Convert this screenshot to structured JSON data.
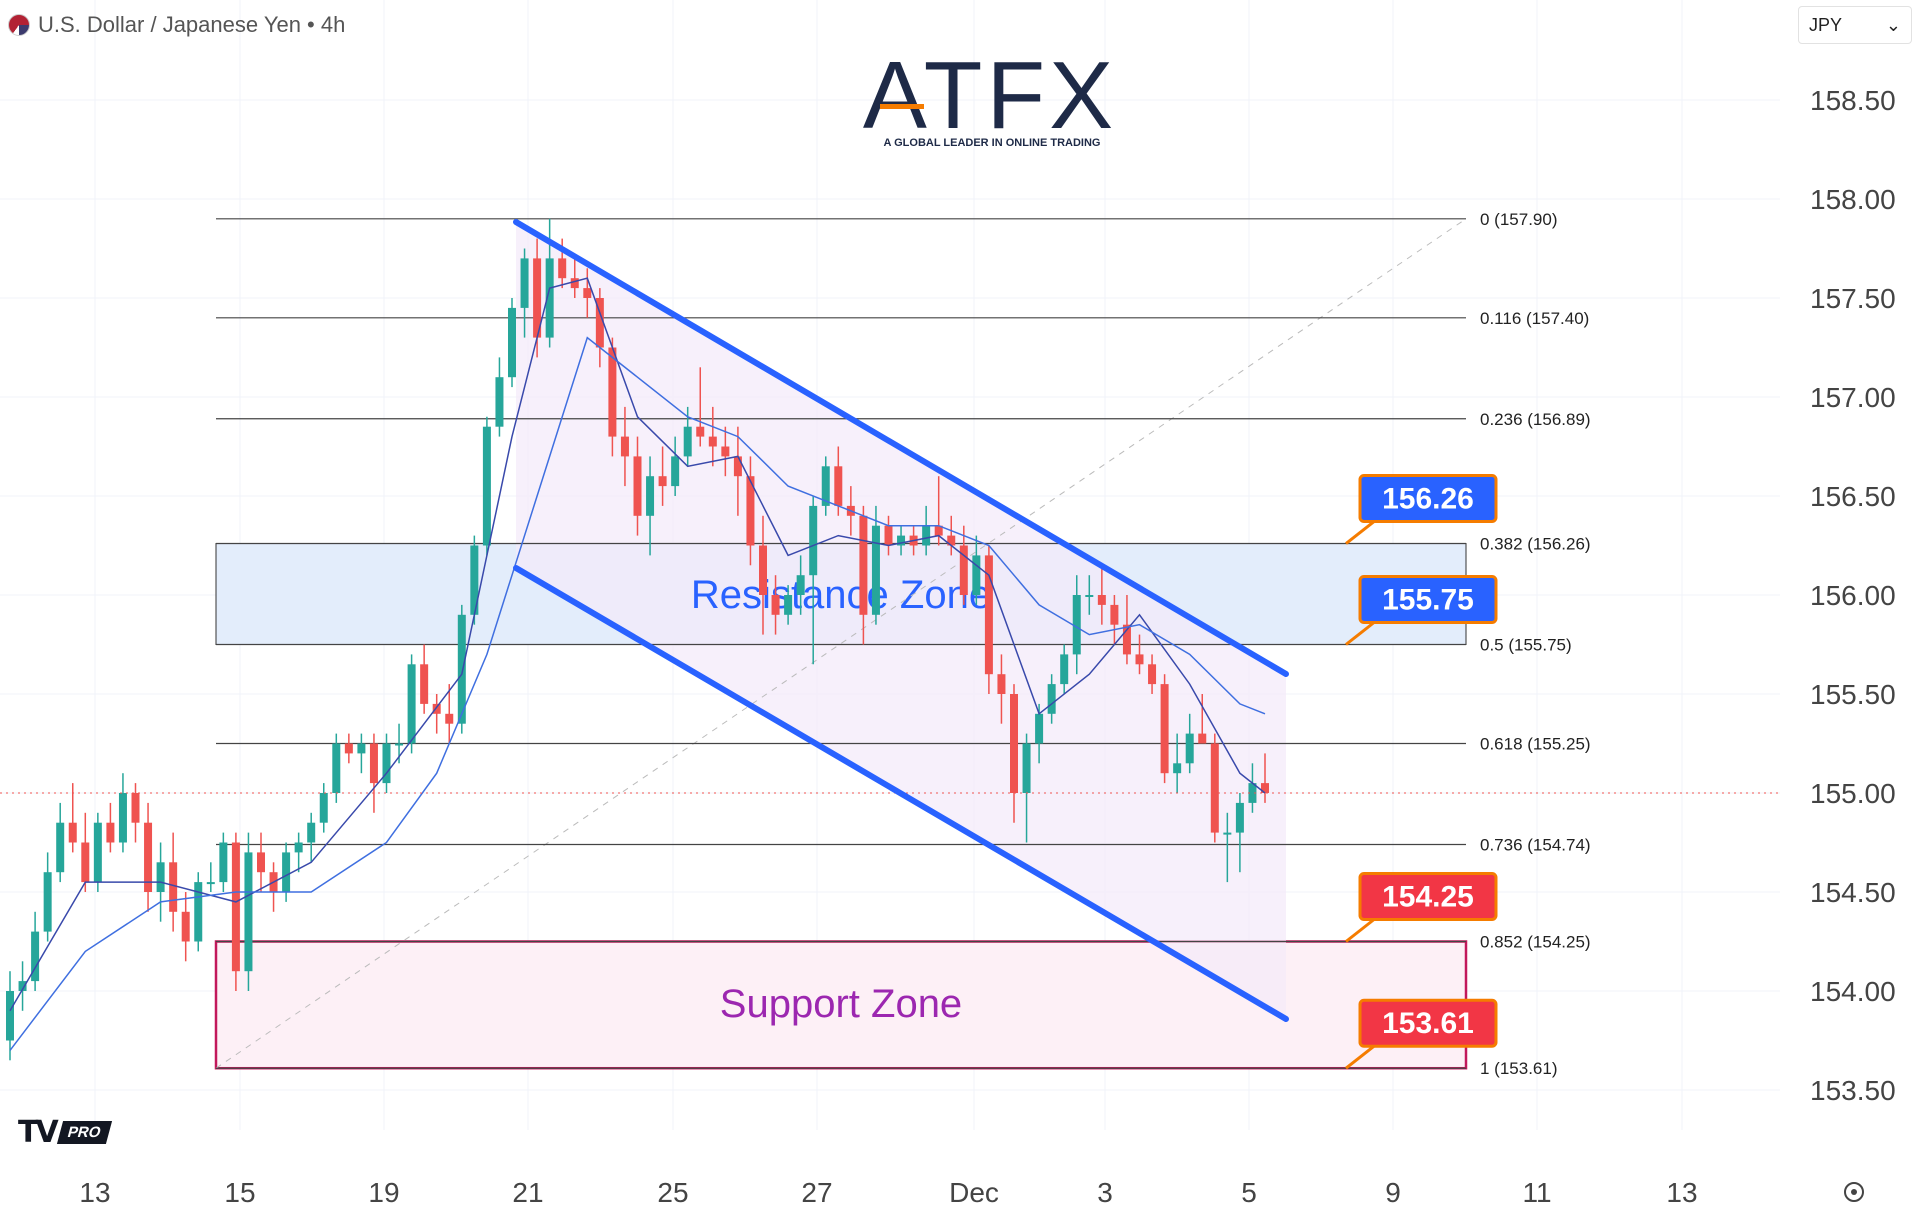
{
  "header": {
    "symbol_title": "U.S. Dollar / Japanese Yen • 4h",
    "currency_select": "JPY"
  },
  "branding": {
    "logo_text": "ATFX",
    "tagline": "A GLOBAL LEADER IN ONLINE TRADING",
    "badge": "PRO"
  },
  "colors": {
    "bull": "#26a69a",
    "bear": "#ef5350",
    "channel": "#2962ff",
    "resistance_fill": "#e3edfb",
    "support_border": "#c2185b",
    "support_text": "#9c27b0",
    "resistance_text": "#2962ff",
    "label_blue": "#2962ff",
    "label_red": "#f23645",
    "label_border": "#f57c00"
  },
  "chart_data": {
    "type": "candlestick",
    "title": "U.S. Dollar / Japanese Yen • 4h",
    "ylim": [
      153.3,
      158.8
    ],
    "yticks": [
      "158.50",
      "158.00",
      "157.50",
      "157.00",
      "156.50",
      "156.00",
      "155.50",
      "155.00",
      "154.50",
      "154.00",
      "153.50"
    ],
    "x_ticks": [
      "13",
      "15",
      "19",
      "21",
      "25",
      "27",
      "Dec",
      "3",
      "5",
      "9",
      "11",
      "13"
    ],
    "fib_levels": [
      {
        "label": "0 (157.90)",
        "value": 157.9
      },
      {
        "label": "0.116 (157.40)",
        "value": 157.4
      },
      {
        "label": "0.236 (156.89)",
        "value": 156.89
      },
      {
        "label": "0.382 (156.26)",
        "value": 156.26
      },
      {
        "label": "0.5 (155.75)",
        "value": 155.75
      },
      {
        "label": "0.618 (155.25)",
        "value": 155.25
      },
      {
        "label": "0.736 (154.74)",
        "value": 154.74
      },
      {
        "label": "0.852 (154.25)",
        "value": 154.25
      },
      {
        "label": "1 (153.61)",
        "value": 153.61
      }
    ],
    "zones": {
      "resistance": {
        "label": "Resistance Zone",
        "top": 156.26,
        "bottom": 155.75
      },
      "support": {
        "label": "Support Zone",
        "top": 154.25,
        "bottom": 153.61
      }
    },
    "price_labels": [
      {
        "text": "156.26",
        "value": 156.26,
        "color": "blue"
      },
      {
        "text": "155.75",
        "value": 155.75,
        "color": "blue"
      },
      {
        "text": "154.25",
        "value": 154.25,
        "color": "red"
      },
      {
        "text": "153.61",
        "value": 153.61,
        "color": "red"
      }
    ],
    "last_price": 155.0,
    "candles": [
      [
        153.75,
        154.1,
        153.65,
        154.0
      ],
      [
        154.0,
        154.15,
        153.9,
        154.05
      ],
      [
        154.05,
        154.4,
        154.0,
        154.3
      ],
      [
        154.3,
        154.7,
        154.25,
        154.6
      ],
      [
        154.6,
        154.95,
        154.55,
        154.85
      ],
      [
        154.85,
        155.05,
        154.7,
        154.75
      ],
      [
        154.75,
        154.9,
        154.5,
        154.55
      ],
      [
        154.55,
        154.9,
        154.5,
        154.85
      ],
      [
        154.85,
        154.95,
        154.7,
        154.75
      ],
      [
        154.75,
        155.1,
        154.7,
        155.0
      ],
      [
        155.0,
        155.05,
        154.75,
        154.85
      ],
      [
        154.85,
        154.95,
        154.4,
        154.5
      ],
      [
        154.5,
        154.75,
        154.35,
        154.65
      ],
      [
        154.65,
        154.8,
        154.3,
        154.4
      ],
      [
        154.4,
        154.5,
        154.15,
        154.25
      ],
      [
        154.25,
        154.6,
        154.2,
        154.55
      ],
      [
        154.55,
        154.65,
        154.5,
        154.55
      ],
      [
        154.55,
        154.8,
        154.5,
        154.75
      ],
      [
        154.75,
        154.8,
        154.0,
        154.1
      ],
      [
        154.1,
        154.8,
        154.0,
        154.7
      ],
      [
        154.7,
        154.8,
        154.5,
        154.6
      ],
      [
        154.6,
        154.65,
        154.4,
        154.5
      ],
      [
        154.5,
        154.75,
        154.45,
        154.7
      ],
      [
        154.7,
        154.8,
        154.6,
        154.75
      ],
      [
        154.75,
        154.9,
        154.65,
        154.85
      ],
      [
        154.85,
        155.05,
        154.8,
        155.0
      ],
      [
        155.0,
        155.3,
        154.95,
        155.25
      ],
      [
        155.25,
        155.3,
        155.15,
        155.2
      ],
      [
        155.2,
        155.3,
        155.1,
        155.25
      ],
      [
        155.25,
        155.3,
        154.9,
        155.05
      ],
      [
        155.05,
        155.3,
        155.0,
        155.25
      ],
      [
        155.25,
        155.35,
        155.15,
        155.25
      ],
      [
        155.25,
        155.7,
        155.2,
        155.65
      ],
      [
        155.65,
        155.75,
        155.4,
        155.45
      ],
      [
        155.45,
        155.5,
        155.3,
        155.4
      ],
      [
        155.4,
        155.55,
        155.25,
        155.35
      ],
      [
        155.35,
        155.95,
        155.3,
        155.9
      ],
      [
        155.9,
        156.3,
        155.85,
        156.25
      ],
      [
        156.25,
        156.9,
        156.2,
        156.85
      ],
      [
        156.85,
        157.2,
        156.8,
        157.1
      ],
      [
        157.1,
        157.5,
        157.05,
        157.45
      ],
      [
        157.45,
        157.75,
        157.3,
        157.7
      ],
      [
        157.7,
        157.8,
        157.2,
        157.3
      ],
      [
        157.3,
        157.9,
        157.25,
        157.7
      ],
      [
        157.7,
        157.8,
        157.55,
        157.6
      ],
      [
        157.6,
        157.7,
        157.5,
        157.55
      ],
      [
        157.55,
        157.65,
        157.4,
        157.5
      ],
      [
        157.5,
        157.55,
        157.15,
        157.25
      ],
      [
        157.25,
        157.3,
        156.7,
        156.8
      ],
      [
        156.8,
        156.95,
        156.55,
        156.7
      ],
      [
        156.7,
        156.8,
        156.3,
        156.4
      ],
      [
        156.4,
        156.7,
        156.2,
        156.6
      ],
      [
        156.6,
        156.75,
        156.45,
        156.55
      ],
      [
        156.55,
        156.8,
        156.5,
        156.7
      ],
      [
        156.7,
        156.95,
        156.65,
        156.85
      ],
      [
        156.85,
        157.15,
        156.75,
        156.8
      ],
      [
        156.8,
        156.95,
        156.65,
        156.75
      ],
      [
        156.75,
        156.85,
        156.6,
        156.7
      ],
      [
        156.7,
        156.85,
        156.4,
        156.6
      ],
      [
        156.6,
        156.7,
        156.15,
        156.25
      ],
      [
        156.25,
        156.4,
        155.8,
        156.0
      ],
      [
        156.0,
        156.1,
        155.8,
        155.9
      ],
      [
        155.9,
        156.05,
        155.85,
        156.0
      ],
      [
        156.0,
        156.2,
        155.9,
        156.1
      ],
      [
        156.1,
        156.5,
        155.65,
        156.45
      ],
      [
        156.45,
        156.7,
        156.4,
        156.65
      ],
      [
        156.65,
        156.75,
        156.4,
        156.45
      ],
      [
        156.45,
        156.55,
        156.3,
        156.4
      ],
      [
        156.4,
        156.45,
        155.75,
        155.9
      ],
      [
        155.9,
        156.45,
        155.85,
        156.35
      ],
      [
        156.35,
        156.4,
        156.2,
        156.25
      ],
      [
        156.25,
        156.35,
        156.2,
        156.3
      ],
      [
        156.3,
        156.35,
        156.2,
        156.25
      ],
      [
        156.25,
        156.45,
        156.2,
        156.35
      ],
      [
        156.35,
        156.6,
        156.25,
        156.3
      ],
      [
        156.3,
        156.4,
        156.2,
        156.25
      ],
      [
        156.25,
        156.35,
        155.95,
        156.0
      ],
      [
        156.0,
        156.3,
        155.95,
        156.2
      ],
      [
        156.2,
        156.25,
        155.5,
        155.6
      ],
      [
        155.6,
        155.7,
        155.35,
        155.5
      ],
      [
        155.5,
        155.55,
        154.85,
        155.0
      ],
      [
        155.0,
        155.3,
        154.75,
        155.25
      ],
      [
        155.25,
        155.45,
        155.15,
        155.4
      ],
      [
        155.4,
        155.6,
        155.35,
        155.55
      ],
      [
        155.55,
        155.75,
        155.5,
        155.7
      ],
      [
        155.7,
        156.1,
        155.6,
        156.0
      ],
      [
        156.0,
        156.1,
        155.9,
        156.0
      ],
      [
        156.0,
        156.15,
        155.85,
        155.95
      ],
      [
        155.95,
        156.0,
        155.75,
        155.85
      ],
      [
        155.85,
        156.0,
        155.65,
        155.7
      ],
      [
        155.7,
        155.8,
        155.6,
        155.65
      ],
      [
        155.65,
        155.7,
        155.5,
        155.55
      ],
      [
        155.55,
        155.6,
        155.05,
        155.1
      ],
      [
        155.1,
        155.3,
        155.0,
        155.15
      ],
      [
        155.15,
        155.4,
        155.1,
        155.3
      ],
      [
        155.3,
        155.5,
        155.25,
        155.25
      ],
      [
        155.25,
        155.3,
        154.75,
        154.8
      ],
      [
        154.8,
        154.9,
        154.55,
        154.8
      ],
      [
        154.8,
        155.0,
        154.6,
        154.95
      ],
      [
        154.95,
        155.15,
        154.9,
        155.05
      ],
      [
        155.05,
        155.2,
        154.95,
        155.0
      ]
    ],
    "ma_fast": [
      [
        0,
        153.9
      ],
      [
        6,
        154.55
      ],
      [
        12,
        154.55
      ],
      [
        18,
        154.45
      ],
      [
        24,
        154.65
      ],
      [
        30,
        155.1
      ],
      [
        36,
        155.6
      ],
      [
        40,
        156.8
      ],
      [
        43,
        157.55
      ],
      [
        46,
        157.6
      ],
      [
        50,
        156.9
      ],
      [
        54,
        156.65
      ],
      [
        58,
        156.7
      ],
      [
        62,
        156.2
      ],
      [
        66,
        156.3
      ],
      [
        70,
        156.25
      ],
      [
        74,
        156.3
      ],
      [
        78,
        156.1
      ],
      [
        82,
        155.4
      ],
      [
        86,
        155.6
      ],
      [
        90,
        155.9
      ],
      [
        94,
        155.55
      ],
      [
        98,
        155.1
      ],
      [
        100,
        155.0
      ]
    ],
    "ma_slow": [
      [
        0,
        153.7
      ],
      [
        6,
        154.2
      ],
      [
        12,
        154.45
      ],
      [
        18,
        154.5
      ],
      [
        24,
        154.5
      ],
      [
        30,
        154.75
      ],
      [
        34,
        155.1
      ],
      [
        38,
        155.7
      ],
      [
        42,
        156.5
      ],
      [
        46,
        157.3
      ],
      [
        50,
        157.1
      ],
      [
        54,
        156.9
      ],
      [
        58,
        156.8
      ],
      [
        62,
        156.55
      ],
      [
        66,
        156.45
      ],
      [
        70,
        156.35
      ],
      [
        74,
        156.35
      ],
      [
        78,
        156.25
      ],
      [
        82,
        155.95
      ],
      [
        86,
        155.8
      ],
      [
        90,
        155.85
      ],
      [
        94,
        155.7
      ],
      [
        98,
        155.45
      ],
      [
        100,
        155.4
      ]
    ]
  }
}
